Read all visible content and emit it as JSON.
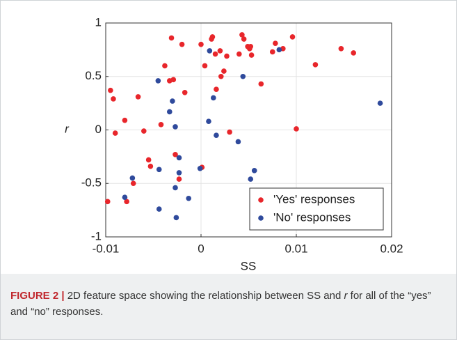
{
  "chart_data": {
    "type": "scatter",
    "xlabel": "SS",
    "ylabel": "r",
    "xlim": [
      -0.01,
      0.02
    ],
    "ylim": [
      -1,
      1
    ],
    "xticks": [
      -0.01,
      0,
      0.01,
      0.02
    ],
    "yticks": [
      -1,
      -0.5,
      0,
      0.5,
      1
    ],
    "grid": true,
    "legend": "lower right",
    "series": [
      {
        "name": "'Yes' responses",
        "color": "#e8262b",
        "x": [
          -0.0095,
          -0.0092,
          -0.009,
          -0.0098,
          -0.008,
          -0.0078,
          -0.0071,
          -0.0066,
          -0.006,
          -0.0055,
          -0.0053,
          -0.0042,
          -0.0038,
          -0.0033,
          -0.0029,
          -0.0031,
          -0.002,
          -0.0017,
          -0.0027,
          -0.0023,
          0.0001,
          0.0004,
          0.0012,
          0.0011,
          0.0015,
          0.002,
          0.0016,
          0.0021,
          0.0024,
          0.0027,
          0.003,
          0.004,
          0.0043,
          0.0045,
          0.0049,
          0.0051,
          0.0053,
          0.0052,
          0.0063,
          0.0075,
          0.0078,
          0.0086,
          0.0096,
          0.01,
          0.012,
          0.0147,
          0.016,
          0.0
        ],
        "values": [
          0.37,
          0.29,
          -0.03,
          -0.67,
          0.09,
          -0.67,
          -0.5,
          0.31,
          -0.01,
          -0.28,
          -0.34,
          0.05,
          0.6,
          0.46,
          0.47,
          0.86,
          0.8,
          0.35,
          -0.23,
          -0.46,
          -0.35,
          0.6,
          0.87,
          0.85,
          0.71,
          0.74,
          0.38,
          0.5,
          0.55,
          0.69,
          -0.02,
          0.71,
          0.89,
          0.85,
          0.78,
          0.76,
          0.7,
          0.78,
          0.43,
          0.73,
          0.81,
          0.76,
          0.87,
          0.01,
          0.61,
          0.76,
          0.72,
          0.8
        ]
      },
      {
        "name": "'No' responses",
        "color": "#2f4a9c",
        "x": [
          -0.0045,
          -0.0044,
          -0.0044,
          -0.0072,
          -0.008,
          -0.0033,
          -0.003,
          -0.0027,
          -0.0023,
          -0.0023,
          -0.0027,
          -0.0013,
          -0.0026,
          -0.0001,
          0.0008,
          0.0009,
          0.0013,
          0.0016,
          0.0039,
          0.0044,
          0.0052,
          0.0056,
          0.0082,
          0.0188
        ],
        "values": [
          0.46,
          -0.37,
          -0.74,
          -0.45,
          -0.63,
          0.17,
          0.27,
          0.03,
          -0.26,
          -0.4,
          -0.54,
          -0.64,
          -0.82,
          -0.36,
          0.08,
          0.74,
          0.3,
          -0.05,
          -0.11,
          0.5,
          -0.46,
          -0.38,
          0.75,
          0.25
        ]
      }
    ]
  },
  "caption": {
    "label": "FIGURE 2 |",
    "before": "2D feature space showing the relationship between SS and",
    "italic": "r",
    "after": "for all of the “yes” and “no” responses."
  }
}
